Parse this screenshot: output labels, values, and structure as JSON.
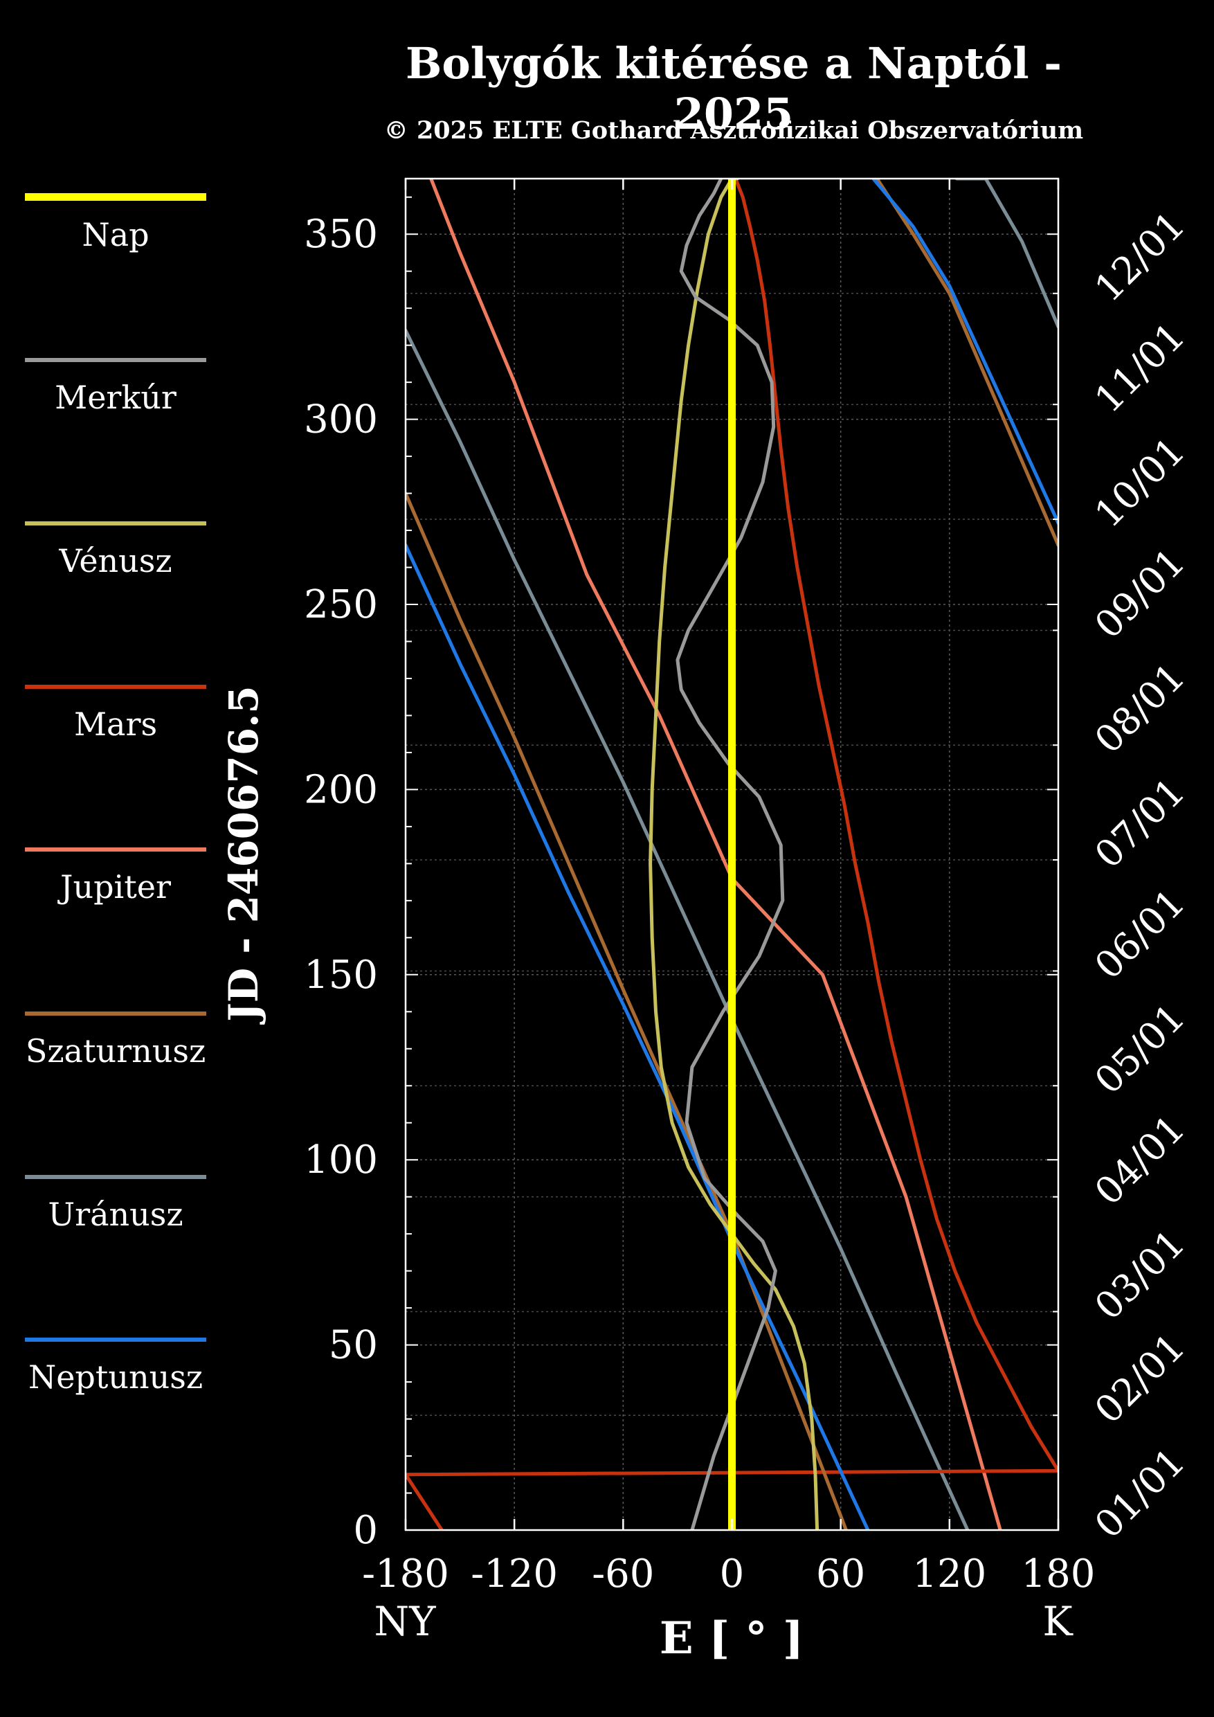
{
  "title": "Bolygók kitérése a Naptól - 2025",
  "subtitle": "© 2025 ELTE Gothard Asztrofizikai Obszervatórium",
  "legend": [
    {
      "name": "Nap",
      "color": "#ffff00"
    },
    {
      "name": "Merkúr",
      "color": "#9a9a9a"
    },
    {
      "name": "Vénusz",
      "color": "#c8c05a"
    },
    {
      "name": "Mars",
      "color": "#c8320f"
    },
    {
      "name": "Jupiter",
      "color": "#f07a5e"
    },
    {
      "name": "Szaturnusz",
      "color": "#a86a30"
    },
    {
      "name": "Uránusz",
      "color": "#7a8c96"
    },
    {
      "name": "Neptunusz",
      "color": "#1e78e6"
    }
  ],
  "chart_data": {
    "type": "line",
    "title": "Bolygók kitérése a Naptól - 2025",
    "xlabel": "E [ ° ]",
    "ylabel": "JD - 2460676.5",
    "xlim": [
      -180,
      180
    ],
    "ylim": [
      0,
      365
    ],
    "xticks": [
      -180,
      -120,
      -60,
      0,
      60,
      120,
      180
    ],
    "xtick_labels": [
      "-180",
      "-120",
      "-60",
      "0",
      "60",
      "120",
      "180"
    ],
    "yticks": [
      0,
      50,
      100,
      150,
      200,
      250,
      300,
      350
    ],
    "ytick_labels": [
      "0",
      "50",
      "100",
      "150",
      "200",
      "250",
      "300",
      "350"
    ],
    "x_left_label": "NY",
    "x_right_label": "K",
    "date_axis": {
      "labels": [
        "01/01",
        "02/01",
        "03/01",
        "04/01",
        "05/01",
        "06/01",
        "07/01",
        "08/01",
        "09/01",
        "10/01",
        "11/01",
        "12/01"
      ],
      "values": [
        0,
        31,
        59,
        90,
        120,
        151,
        181,
        212,
        243,
        273,
        304,
        334
      ]
    },
    "grid": true,
    "legend_position": "left",
    "series": [
      {
        "name": "Nap",
        "color": "#ffff00",
        "x": [
          0,
          0
        ],
        "y": [
          0,
          365
        ]
      },
      {
        "name": "Merkúr",
        "color": "#9a9a9a",
        "x": [
          -22,
          -10,
          5,
          20,
          24,
          17,
          3,
          -15,
          -25,
          -22,
          -5,
          15,
          28,
          27,
          15,
          -2,
          -18,
          -28,
          -30,
          -24,
          -10,
          5,
          17,
          23,
          22,
          14,
          -2,
          -20,
          -28,
          -25,
          -18,
          -10,
          -6
        ],
        "y": [
          0,
          20,
          40,
          60,
          70,
          78,
          85,
          95,
          110,
          125,
          140,
          155,
          170,
          185,
          198,
          207,
          218,
          227,
          235,
          243,
          255,
          268,
          283,
          298,
          310,
          320,
          327,
          333,
          340,
          347,
          355,
          361,
          365
        ]
      },
      {
        "name": "Vénusz",
        "color": "#c8c05a",
        "x": [
          47,
          46,
          44,
          40,
          34,
          24,
          12,
          0,
          -12,
          -24,
          -33,
          -39,
          -42,
          -44,
          -45,
          -44,
          -42,
          -40,
          -37,
          -34,
          -31,
          -28,
          -24,
          -19,
          -13,
          -6,
          0,
          3
        ],
        "y": [
          0,
          15,
          30,
          45,
          55,
          65,
          72,
          80,
          88,
          98,
          110,
          125,
          140,
          160,
          180,
          200,
          220,
          240,
          260,
          275,
          290,
          305,
          320,
          335,
          350,
          360,
          365,
          365
        ]
      },
      {
        "name": "Mars",
        "color": "#c8320f",
        "x": [
          -160,
          -180,
          null,
          -180,
          180,
          null,
          180,
          165,
          150,
          135,
          123,
          113,
          104,
          96,
          88,
          81,
          75,
          68,
          62,
          55,
          48,
          42,
          36,
          31,
          27,
          24,
          21,
          18,
          14,
          10,
          6,
          2
        ],
        "y": [
          0,
          15,
          null,
          15,
          16,
          null,
          16,
          28,
          42,
          56,
          70,
          84,
          100,
          116,
          132,
          148,
          164,
          180,
          196,
          212,
          228,
          244,
          260,
          276,
          292,
          306,
          320,
          332,
          343,
          352,
          360,
          365
        ]
      },
      {
        "name": "Jupiter",
        "color": "#f07a5e",
        "x": [
          148,
          96,
          50,
          0,
          -40,
          -80,
          -120,
          -150,
          -166
        ],
        "y": [
          0,
          90,
          150,
          176,
          220,
          258,
          310,
          345,
          365
        ]
      },
      {
        "name": "Szaturnusz",
        "color": "#a86a30",
        "x": [
          63,
          30,
          0,
          -32,
          -60,
          -90,
          -120,
          -150,
          -180,
          null,
          180,
          150,
          120,
          100,
          80
        ],
        "y": [
          0,
          42,
          80,
          115,
          146,
          180,
          214,
          246,
          280,
          null,
          266,
          300,
          334,
          350,
          365
        ]
      },
      {
        "name": "Uránusz",
        "color": "#7a8c96",
        "x": [
          130,
          90,
          60,
          30,
          0,
          -30,
          -60,
          -90,
          -120,
          -150,
          -180,
          null,
          180,
          160,
          140,
          124
        ],
        "y": [
          0,
          43,
          76,
          107,
          138,
          170,
          202,
          232,
          262,
          294,
          324,
          null,
          325,
          348,
          365,
          365
        ]
      },
      {
        "name": "Neptunusz",
        "color": "#1e78e6",
        "x": [
          75,
          40,
          0,
          -30,
          -60,
          -90,
          -120,
          -150,
          -180,
          null,
          180,
          150,
          120,
          100,
          78
        ],
        "y": [
          0,
          37,
          78,
          111,
          142,
          172,
          204,
          234,
          266,
          null,
          272,
          304,
          336,
          352,
          365
        ]
      }
    ]
  }
}
